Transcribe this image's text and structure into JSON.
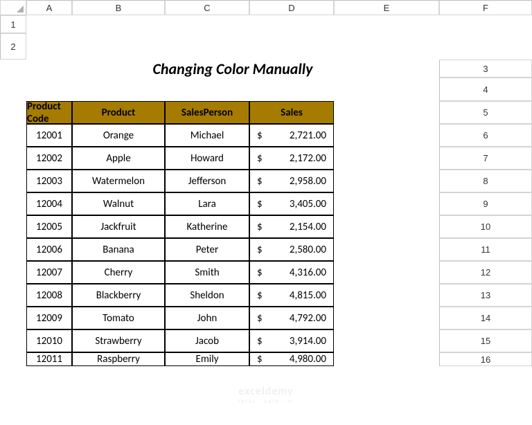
{
  "columns": [
    "A",
    "B",
    "C",
    "D",
    "E",
    "F"
  ],
  "rows": [
    "1",
    "2",
    "3",
    "4",
    "5",
    "6",
    "7",
    "8",
    "9",
    "10",
    "11",
    "12",
    "13",
    "14",
    "15",
    "16"
  ],
  "title": "Changing Color Manually",
  "table": {
    "header_bg": "#a67c00",
    "header_fg": "#000000",
    "border_color": "#000000",
    "headers": [
      "Product Code",
      "Product",
      "SalesPerson",
      "Sales"
    ],
    "data": [
      {
        "code": "12001",
        "product": "Orange",
        "person": "Michael",
        "sales": "2,721.00"
      },
      {
        "code": "12002",
        "product": "Apple",
        "person": "Howard",
        "sales": "2,172.00"
      },
      {
        "code": "12003",
        "product": "Watermelon",
        "person": "Jefferson",
        "sales": "2,958.00"
      },
      {
        "code": "12004",
        "product": "Walnut",
        "person": "Lara",
        "sales": "3,405.00"
      },
      {
        "code": "12005",
        "product": "Jackfruit",
        "person": "Katherine",
        "sales": "2,154.00"
      },
      {
        "code": "12006",
        "product": "Banana",
        "person": "Peter",
        "sales": "2,580.00"
      },
      {
        "code": "12007",
        "product": "Cherry",
        "person": "Smith",
        "sales": "4,316.00"
      },
      {
        "code": "12008",
        "product": "Blackberry",
        "person": "Sheldon",
        "sales": "4,815.00"
      },
      {
        "code": "12009",
        "product": "Tomato",
        "person": "John",
        "sales": "4,792.00"
      },
      {
        "code": "12010",
        "product": "Strawberry",
        "person": "Jacob",
        "sales": "3,914.00"
      },
      {
        "code": "12011",
        "product": "Raspberry",
        "person": "Emily",
        "sales": "4,980.00"
      }
    ],
    "currency_symbol": "$"
  },
  "watermark": {
    "main": "exceldemy",
    "sub": "EXCEL · DATA · BI"
  }
}
